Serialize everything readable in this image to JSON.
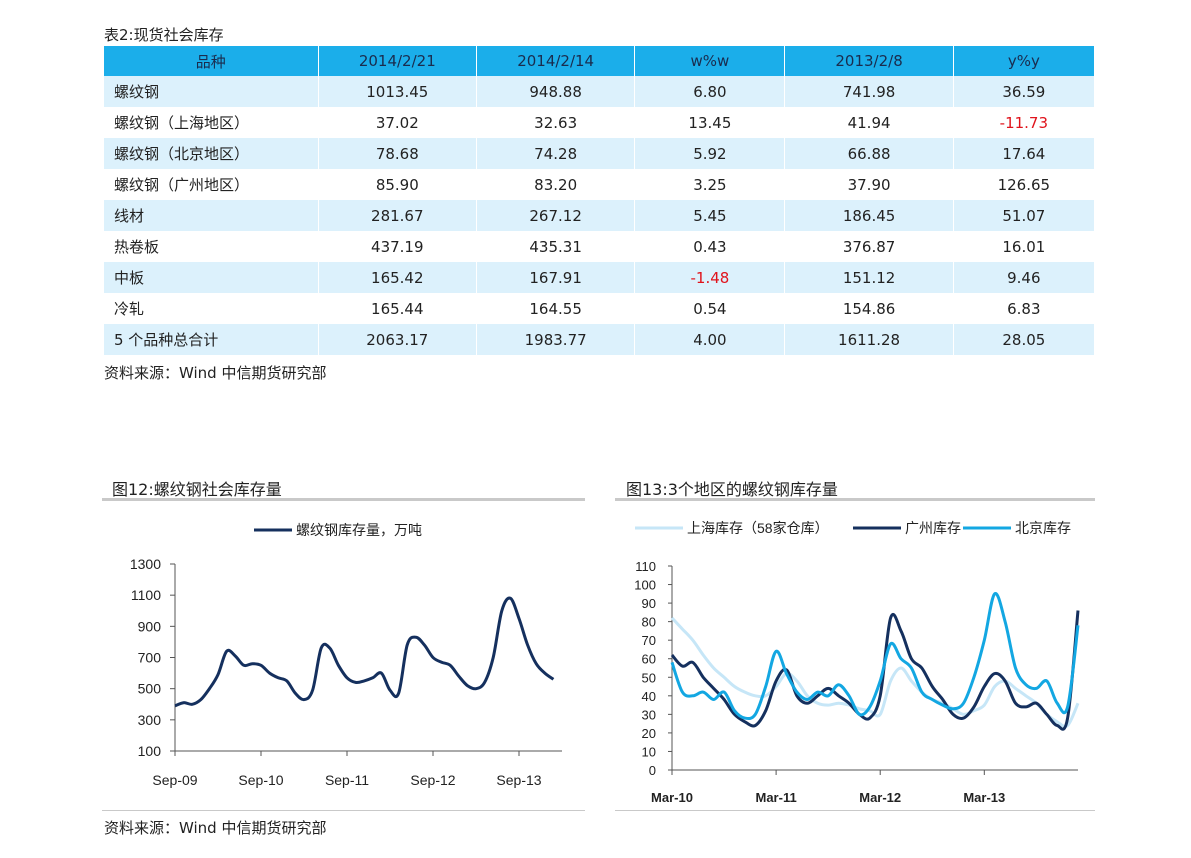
{
  "table": {
    "caption": "表2:现货社会库存",
    "headers": [
      "品种",
      "2014/2/21",
      "2014/2/14",
      "w%w",
      "2013/2/8",
      "y%y"
    ],
    "rows": [
      [
        "螺纹钢",
        "1013.45",
        "948.88",
        "6.80",
        "741.98",
        "36.59"
      ],
      [
        "螺纹钢（上海地区）",
        "37.02",
        "32.63",
        "13.45",
        "41.94",
        "-11.73"
      ],
      [
        "螺纹钢（北京地区）",
        "78.68",
        "74.28",
        "5.92",
        "66.88",
        "17.64"
      ],
      [
        "螺纹钢（广州地区）",
        "85.90",
        "83.20",
        "3.25",
        "37.90",
        "126.65"
      ],
      [
        "线材",
        "281.67",
        "267.12",
        "5.45",
        "186.45",
        "51.07"
      ],
      [
        "热卷板",
        "437.19",
        "435.31",
        "0.43",
        "376.87",
        "16.01"
      ],
      [
        "中板",
        "165.42",
        "167.91",
        "-1.48",
        "151.12",
        "9.46"
      ],
      [
        "冷轧",
        "165.44",
        "164.55",
        "0.54",
        "154.86",
        "6.83"
      ],
      [
        "5 个品种总合计",
        "2063.17",
        "1983.77",
        "4.00",
        "1611.28",
        "28.05"
      ]
    ],
    "source": "资料来源：Wind 中信期货研究部"
  },
  "bottom_source": "资料来源：Wind 中信期货研究部",
  "colors": {
    "header_bg": "#1baeea",
    "row_odd_bg": "#dcf1fc",
    "negative": "#e0131b",
    "series_navy": "#15305e",
    "series_light": "#c6e6f7",
    "series_blue": "#13a7e2"
  },
  "chart_data": [
    {
      "type": "line",
      "title": "图12:螺纹钢社会库存量",
      "legend": "螺纹钢库存量，万吨",
      "legend_placement": "top",
      "x_ticks": [
        "Sep-09",
        "Sep-10",
        "Sep-11",
        "Sep-12",
        "Sep-13"
      ],
      "y_ticks": [
        "1300",
        "1100",
        "900",
        "700",
        "500",
        "300",
        "100"
      ],
      "ylim": [
        100,
        1300
      ],
      "grid": false,
      "series": [
        {
          "name": "螺纹钢库存量，万吨",
          "x": [
            0,
            0.1,
            0.2,
            0.3,
            0.4,
            0.5,
            0.6,
            0.7,
            0.8,
            0.9,
            1.0,
            1.1,
            1.2,
            1.3,
            1.4,
            1.5,
            1.6,
            1.7,
            1.8,
            1.9,
            2.0,
            2.1,
            2.2,
            2.3,
            2.4,
            2.5,
            2.6,
            2.7,
            2.8,
            2.9,
            3.0,
            3.1,
            3.2,
            3.3,
            3.4,
            3.5,
            3.6,
            3.7,
            3.8,
            3.9,
            4.0,
            4.1,
            4.2,
            4.3,
            4.4
          ],
          "values": [
            390,
            410,
            400,
            430,
            500,
            590,
            740,
            710,
            650,
            660,
            650,
            600,
            570,
            550,
            470,
            430,
            490,
            760,
            760,
            650,
            570,
            540,
            550,
            570,
            600,
            490,
            470,
            780,
            830,
            780,
            700,
            670,
            650,
            580,
            520,
            500,
            540,
            700,
            1000,
            1080,
            950,
            780,
            660,
            600,
            560
          ]
        }
      ]
    },
    {
      "type": "line",
      "title": "图13:3个地区的螺纹钢库存量",
      "legend_placement": "top",
      "x_ticks": [
        "Mar-10",
        "Mar-11",
        "Mar-12",
        "Mar-13"
      ],
      "y_ticks": [
        "110",
        "100",
        "90",
        "80",
        "70",
        "60",
        "50",
        "40",
        "30",
        "20",
        "10",
        "0"
      ],
      "ylim": [
        0,
        110
      ],
      "grid": false,
      "series": [
        {
          "name": "上海库存（58家仓库）",
          "x": [
            0,
            0.1,
            0.2,
            0.3,
            0.4,
            0.5,
            0.6,
            0.7,
            0.8,
            0.9,
            1.0,
            1.1,
            1.2,
            1.3,
            1.4,
            1.5,
            1.6,
            1.7,
            1.8,
            1.9,
            2.0,
            2.1,
            2.2,
            2.3,
            2.4,
            2.5,
            2.6,
            2.7,
            2.8,
            2.9,
            3.0,
            3.1,
            3.2,
            3.3,
            3.4,
            3.5,
            3.6,
            3.7,
            3.8,
            3.9
          ],
          "values": [
            82,
            76,
            70,
            62,
            55,
            50,
            45,
            42,
            40,
            40,
            45,
            52,
            48,
            40,
            36,
            35,
            36,
            35,
            33,
            32,
            30,
            48,
            55,
            48,
            42,
            38,
            36,
            33,
            30,
            32,
            35,
            45,
            48,
            44,
            40,
            36,
            30,
            26,
            24,
            36
          ]
        },
        {
          "name": "广州库存",
          "x": [
            0,
            0.1,
            0.2,
            0.3,
            0.4,
            0.5,
            0.6,
            0.7,
            0.8,
            0.9,
            1.0,
            1.1,
            1.2,
            1.3,
            1.4,
            1.5,
            1.6,
            1.7,
            1.8,
            1.9,
            2.0,
            2.1,
            2.2,
            2.3,
            2.4,
            2.5,
            2.6,
            2.7,
            2.8,
            2.9,
            3.0,
            3.1,
            3.2,
            3.3,
            3.4,
            3.5,
            3.6,
            3.7,
            3.8,
            3.9
          ],
          "values": [
            62,
            56,
            58,
            50,
            44,
            38,
            30,
            26,
            24,
            32,
            48,
            54,
            40,
            36,
            40,
            44,
            40,
            36,
            30,
            28,
            40,
            82,
            75,
            60,
            55,
            45,
            38,
            30,
            28,
            34,
            45,
            52,
            48,
            36,
            34,
            36,
            30,
            24,
            28,
            86
          ]
        },
        {
          "name": "北京库存",
          "x": [
            0,
            0.1,
            0.2,
            0.3,
            0.4,
            0.5,
            0.6,
            0.7,
            0.8,
            0.9,
            1.0,
            1.1,
            1.2,
            1.3,
            1.4,
            1.5,
            1.6,
            1.7,
            1.8,
            1.9,
            2.0,
            2.1,
            2.2,
            2.3,
            2.4,
            2.5,
            2.6,
            2.7,
            2.8,
            2.9,
            3.0,
            3.1,
            3.2,
            3.3,
            3.4,
            3.5,
            3.6,
            3.7,
            3.8,
            3.9
          ],
          "values": [
            58,
            42,
            40,
            42,
            38,
            42,
            32,
            28,
            30,
            45,
            64,
            52,
            42,
            38,
            42,
            40,
            46,
            40,
            30,
            34,
            48,
            68,
            60,
            55,
            42,
            38,
            35,
            33,
            36,
            50,
            70,
            95,
            80,
            55,
            46,
            44,
            48,
            36,
            34,
            78
          ]
        }
      ]
    }
  ]
}
